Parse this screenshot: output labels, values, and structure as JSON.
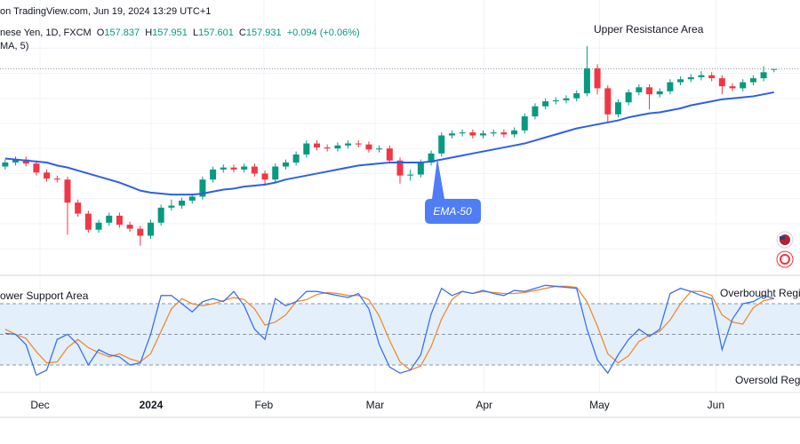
{
  "chart_data": {
    "type": "candlestick",
    "header": {
      "source": "on TradingView.com, Jun 19, 2024 13:29 UTC+1",
      "symbol": "nese Yen, 1D, FXCM",
      "ohlc_labels": [
        "O",
        "H",
        "L",
        "C"
      ],
      "change": "+0.094 (+0.06%)",
      "indicator": "MA, 5)"
    },
    "annotations": [
      "Upper Resistance Area",
      "ower Support Area",
      "Overbought Regi",
      "Oversold Regi"
    ],
    "xlim": [
      -0.5,
      76.5
    ],
    "xticks": [
      {
        "value": 3.35,
        "label": "Dec"
      },
      {
        "value": 14.04,
        "label": "2024"
      },
      {
        "value": 24.9,
        "label": "Feb"
      },
      {
        "value": 35.6,
        "label": "Mar"
      },
      {
        "value": 46.1,
        "label": "Apr"
      },
      {
        "value": 57.2,
        "label": "May"
      },
      {
        "value": 68.4,
        "label": "Jun"
      }
    ],
    "ylim": [
      137.8,
      164.8
    ],
    "ygrid": [
      140,
      142.5,
      145,
      147.5,
      150,
      152.5,
      155,
      157.5,
      160
    ],
    "grid": true,
    "up_color": "#089981",
    "down_color": "#f23645",
    "ohlc": {
      "open": [
        148.2,
        148.6,
        148.9,
        148.5,
        147.6,
        147.0,
        146.9,
        144.6,
        143.5,
        141.9,
        142.6,
        143.3,
        142.4,
        142.0,
        141.3,
        142.6,
        144.1,
        144.3,
        144.8,
        145.2,
        146.9,
        147.9,
        148.1,
        147.9,
        148.2,
        147.5,
        146.9,
        148.2,
        148.6,
        149.4,
        150.5,
        150.1,
        150.0,
        150.3,
        150.5,
        150.4,
        149.9,
        150.0,
        148.8,
        147.3,
        147.4,
        148.6,
        149.5,
        151.3,
        151.5,
        151.6,
        151.3,
        151.5,
        151.6,
        151.4,
        151.8,
        153.2,
        154.2,
        154.7,
        154.8,
        155.0,
        155.5,
        158.0,
        156.0,
        153.4,
        154.6,
        155.6,
        156.1,
        155.4,
        155.7,
        156.6,
        156.9,
        157.1,
        157.3,
        157.0,
        156.2,
        156.0,
        156.6,
        157.0,
        157.837
      ],
      "high": [
        148.9,
        149.2,
        149.2,
        148.8,
        147.9,
        147.3,
        147.2,
        144.9,
        143.8,
        142.9,
        143.6,
        143.6,
        142.7,
        142.3,
        142.9,
        144.4,
        144.9,
        145.1,
        145.5,
        147.2,
        148.2,
        148.4,
        148.4,
        148.5,
        148.5,
        147.8,
        148.5,
        148.9,
        149.7,
        150.8,
        150.8,
        150.4,
        150.6,
        150.8,
        150.8,
        150.7,
        150.3,
        150.3,
        149.1,
        147.9,
        148.9,
        149.8,
        151.6,
        151.8,
        151.9,
        151.9,
        151.8,
        151.9,
        151.9,
        152.1,
        153.5,
        154.5,
        155.0,
        155.1,
        155.3,
        155.8,
        160.2,
        158.4,
        156.3,
        154.9,
        155.9,
        156.4,
        156.4,
        156.0,
        156.9,
        157.2,
        157.4,
        157.7,
        157.6,
        157.3,
        156.5,
        156.9,
        157.3,
        158.2,
        157.951
      ],
      "low": [
        147.9,
        148.3,
        148.2,
        147.3,
        146.7,
        146.6,
        141.4,
        143.2,
        141.6,
        141.6,
        142.3,
        142.1,
        141.7,
        140.3,
        141.0,
        142.3,
        143.8,
        144.0,
        144.5,
        144.9,
        146.6,
        147.6,
        147.6,
        147.6,
        147.2,
        146.3,
        146.6,
        147.9,
        148.3,
        149.1,
        149.8,
        149.7,
        149.7,
        150.0,
        150.1,
        149.6,
        149.6,
        148.5,
        146.5,
        146.8,
        147.1,
        148.3,
        149.2,
        151.0,
        151.2,
        151.0,
        151.0,
        151.2,
        151.1,
        151.1,
        151.5,
        152.9,
        153.9,
        154.4,
        154.5,
        154.7,
        155.2,
        155.4,
        152.6,
        153.1,
        154.3,
        155.3,
        153.9,
        155.1,
        155.4,
        156.3,
        156.6,
        156.8,
        156.7,
        155.4,
        155.7,
        155.7,
        156.3,
        156.7,
        157.601
      ],
      "close": [
        148.6,
        148.9,
        148.5,
        147.6,
        147.0,
        146.9,
        144.6,
        143.5,
        141.9,
        142.6,
        143.3,
        142.4,
        142.0,
        141.3,
        142.6,
        144.1,
        144.3,
        144.8,
        145.2,
        146.9,
        147.9,
        148.1,
        147.9,
        148.2,
        147.5,
        146.9,
        148.2,
        148.6,
        149.4,
        150.5,
        150.1,
        150.0,
        150.3,
        150.5,
        150.4,
        149.9,
        150.0,
        148.8,
        147.3,
        147.4,
        148.6,
        149.5,
        151.3,
        151.5,
        151.6,
        151.3,
        151.5,
        151.6,
        151.4,
        151.8,
        153.2,
        154.2,
        154.7,
        154.8,
        155.0,
        155.5,
        158.0,
        156.0,
        153.4,
        154.6,
        155.6,
        156.1,
        155.4,
        155.7,
        156.6,
        156.9,
        157.1,
        157.3,
        157.0,
        156.2,
        156.0,
        156.6,
        157.0,
        157.6,
        157.931
      ]
    },
    "ema": {
      "name": "EMA-50",
      "color": "#2f5ee8",
      "values": [
        149.0,
        148.9,
        148.8,
        148.7,
        148.6,
        148.3,
        148.1,
        147.8,
        147.5,
        147.2,
        146.9,
        146.6,
        146.2,
        145.8,
        145.6,
        145.5,
        145.4,
        145.4,
        145.4,
        145.5,
        145.7,
        145.9,
        146.0,
        146.2,
        146.3,
        146.4,
        146.6,
        146.9,
        147.1,
        147.3,
        147.5,
        147.7,
        147.9,
        148.1,
        148.3,
        148.4,
        148.5,
        148.6,
        148.6,
        148.6,
        148.6,
        148.7,
        148.9,
        149.1,
        149.3,
        149.5,
        149.7,
        149.9,
        150.1,
        150.3,
        150.5,
        150.8,
        151.1,
        151.4,
        151.7,
        152.0,
        152.2,
        152.4,
        152.6,
        152.8,
        153.1,
        153.3,
        153.5,
        153.6,
        153.8,
        154.0,
        154.3,
        154.5,
        154.7,
        154.9,
        155.0,
        155.1,
        155.2,
        155.4,
        155.6
      ]
    },
    "oscillator": {
      "type": "line",
      "ylim": [
        0,
        100
      ],
      "levels": [
        20,
        50,
        80
      ],
      "band_color": "#e3f0fc",
      "k": {
        "color": "#3d6ff0",
        "values": [
          51,
          50,
          40,
          10,
          15,
          45,
          50,
          40,
          20,
          35,
          30,
          28,
          20,
          22,
          50,
          88,
          88,
          80,
          72,
          82,
          85,
          82,
          92,
          78,
          55,
          45,
          85,
          78,
          82,
          92,
          92,
          90,
          88,
          86,
          90,
          75,
          40,
          18,
          12,
          15,
          30,
          70,
          95,
          88,
          92,
          90,
          93,
          90,
          88,
          93,
          92,
          95,
          98,
          97,
          96,
          95,
          55,
          25,
          12,
          30,
          45,
          55,
          48,
          55,
          90,
          95,
          92,
          88,
          85,
          35,
          65,
          80,
          82,
          88,
          85
        ]
      },
      "d": {
        "color": "#f28a2e",
        "values": [
          55,
          50,
          46,
          33,
          22,
          23,
          37,
          45,
          37,
          32,
          28,
          31,
          26,
          23,
          31,
          53,
          75,
          85,
          80,
          78,
          80,
          83,
          86,
          84,
          75,
          59,
          62,
          69,
          82,
          84,
          89,
          91,
          90,
          88,
          88,
          84,
          68,
          44,
          23,
          15,
          19,
          38,
          65,
          84,
          92,
          90,
          92,
          91,
          90,
          90,
          91,
          93,
          95,
          97,
          97,
          96,
          82,
          58,
          31,
          22,
          29,
          43,
          49,
          53,
          64,
          80,
          92,
          92,
          88,
          69,
          62,
          60,
          76,
          83,
          85
        ]
      }
    }
  }
}
